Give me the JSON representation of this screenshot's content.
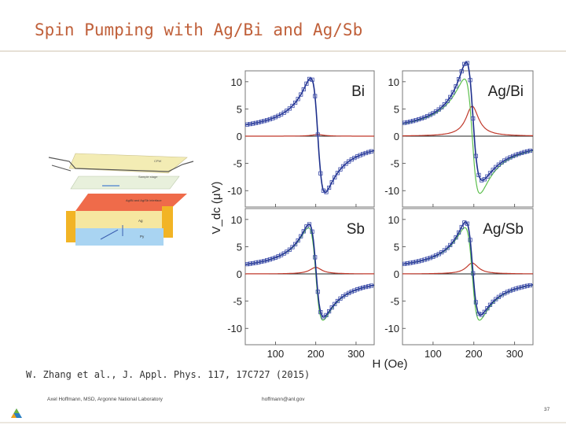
{
  "slide": {
    "title": "Spin Pumping with Ag/Bi and Ag/Sb",
    "citation": "W. Zhang et al., J. Appl. Phys. 117, 17C727 (2015)",
    "footer_left": "Axel Hoffmann, MSD, Argonne National Laboratory",
    "footer_email": "hoffmann@anl.gov",
    "page_number": "37"
  },
  "schematic": {
    "labels": [
      "CPW",
      "Sample stage",
      "Ag/Bi and Ag/Sb interface",
      "Ag",
      "Py"
    ],
    "colors": {
      "cpw": "#f3ecb4",
      "interface": "#ef6b4a",
      "ag": "#f6e7a0",
      "py": "#a9d4f2",
      "gold": "#f2b425"
    }
  },
  "chart_data": {
    "type": "line",
    "xlabel": "H (Oe)",
    "ylabel": "V_dc (μV)",
    "x_ticks": [
      100,
      200,
      300
    ],
    "y_ticks": [
      10,
      5,
      0,
      -5,
      -10
    ],
    "xlim": [
      25,
      345
    ],
    "ylim": [
      -13,
      12
    ],
    "panel_labels": [
      "Bi",
      "Ag/Bi",
      "Sb",
      "Ag/Sb"
    ],
    "colors": {
      "measured": "#3a4aa8",
      "fit": "#1d2f8c",
      "symmetric": "#c0392b",
      "antisymmetric": "#5cbf4d"
    },
    "panels": [
      {
        "label": "Bi",
        "peak_field": 205,
        "width": 18,
        "antisymmetric_amp": 10.5,
        "symmetric_amp": 0.3,
        "show_green": false
      },
      {
        "label": "Ag/Bi",
        "peak_field": 196,
        "width": 19,
        "antisymmetric_amp": 10.5,
        "symmetric_amp": 5.5,
        "show_green": true
      },
      {
        "label": "Sb",
        "peak_field": 200,
        "width": 18,
        "antisymmetric_amp": 8.5,
        "symmetric_amp": 1.2,
        "show_green": true
      },
      {
        "label": "Ag/Sb",
        "peak_field": 196,
        "width": 18,
        "antisymmetric_amp": 8.5,
        "symmetric_amp": 2.0,
        "show_green": true
      }
    ]
  }
}
